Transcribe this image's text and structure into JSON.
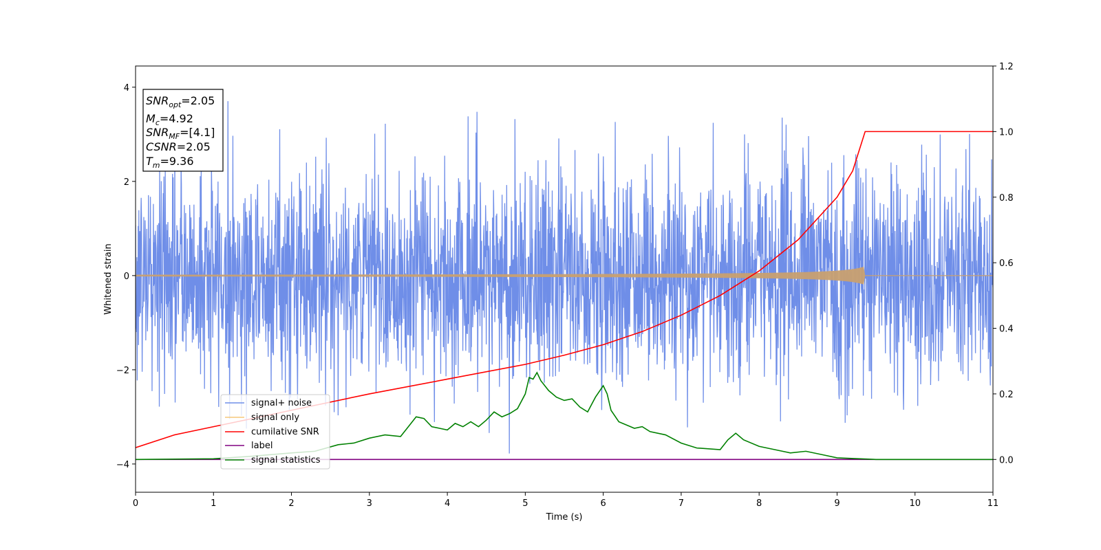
{
  "chart_data": {
    "type": "line",
    "xlabel": "Time (s)",
    "ylabel": "Whitened strain",
    "xlim": [
      0,
      11
    ],
    "ylim_left": [
      -4.6,
      4.45
    ],
    "ylim_right": [
      -0.1,
      1.2
    ],
    "xticks": [
      "0",
      "1",
      "2",
      "3",
      "4",
      "5",
      "6",
      "7",
      "8",
      "9",
      "10",
      "11"
    ],
    "yticks_left": [
      "4",
      "2",
      "0",
      "−2",
      "−4"
    ],
    "yticks_right": [
      "1.2",
      "1.0",
      "0.8",
      "0.6",
      "0.4",
      "0.2",
      "0.0"
    ],
    "grid": false,
    "legend_position": "lower-left",
    "annotation": {
      "snr_opt_base": "SNR",
      "snr_opt_sub": "opt",
      "snr_opt_value": "=2.05",
      "mc_base": "M",
      "mc_sub": "c",
      "mc_value": "=4.92",
      "snr_mf_base": "SNR",
      "snr_mf_sub": "MF",
      "snr_mf_value": "=[4.1]",
      "csnr_base": "CSNR",
      "csnr_value": "=2.05",
      "tm_base": "T",
      "tm_sub": "m",
      "tm_value": "=9.36"
    },
    "series": [
      {
        "name": "signal+ noise",
        "color": "#6f8ee8",
        "axis": "left",
        "kind": "noise",
        "std": 1.0,
        "time_range": [
          0,
          11
        ]
      },
      {
        "name": "signal only",
        "color": "#f5c77a",
        "axis": "left",
        "kind": "chirp",
        "merger_time": 9.36,
        "peak_amplitude": 0.2
      },
      {
        "name": "cumilative SNR",
        "color": "#ff0000",
        "axis": "right",
        "x": [
          0,
          0.5,
          1,
          2,
          3,
          4,
          5,
          5.5,
          6,
          6.5,
          7,
          7.5,
          8,
          8.5,
          9,
          9.2,
          9.36,
          11
        ],
        "y": [
          0.036,
          0.075,
          0.1,
          0.15,
          0.2,
          0.245,
          0.29,
          0.318,
          0.35,
          0.39,
          0.44,
          0.5,
          0.575,
          0.67,
          0.8,
          0.88,
          1.0,
          1.0
        ]
      },
      {
        "name": "label",
        "color": "#800080",
        "axis": "right",
        "x": [
          0,
          11
        ],
        "y": [
          0.0,
          0.0
        ]
      },
      {
        "name": "signal statistics",
        "color": "#008000",
        "axis": "right",
        "x": [
          0,
          1,
          1.5,
          2,
          2.3,
          2.6,
          2.8,
          3.0,
          3.2,
          3.4,
          3.5,
          3.6,
          3.7,
          3.8,
          3.9,
          4.0,
          4.1,
          4.2,
          4.3,
          4.4,
          4.5,
          4.6,
          4.7,
          4.8,
          4.9,
          5.0,
          5.05,
          5.1,
          5.15,
          5.2,
          5.3,
          5.4,
          5.5,
          5.6,
          5.7,
          5.8,
          5.9,
          6.0,
          6.05,
          6.1,
          6.2,
          6.3,
          6.4,
          6.5,
          6.6,
          6.8,
          7.0,
          7.2,
          7.5,
          7.6,
          7.7,
          7.8,
          8.0,
          8.2,
          8.4,
          8.6,
          8.8,
          9.0,
          9.5,
          10.0,
          11.0
        ],
        "y": [
          0.0,
          0.002,
          0.01,
          0.02,
          0.025,
          0.045,
          0.05,
          0.065,
          0.075,
          0.07,
          0.1,
          0.13,
          0.125,
          0.1,
          0.095,
          0.09,
          0.11,
          0.1,
          0.115,
          0.1,
          0.12,
          0.145,
          0.13,
          0.14,
          0.155,
          0.2,
          0.25,
          0.245,
          0.265,
          0.24,
          0.21,
          0.19,
          0.18,
          0.185,
          0.16,
          0.145,
          0.19,
          0.225,
          0.2,
          0.15,
          0.115,
          0.105,
          0.095,
          0.1,
          0.085,
          0.075,
          0.05,
          0.035,
          0.03,
          0.06,
          0.08,
          0.06,
          0.04,
          0.03,
          0.02,
          0.025,
          0.015,
          0.005,
          0.0,
          0.0,
          0.0
        ]
      }
    ]
  }
}
